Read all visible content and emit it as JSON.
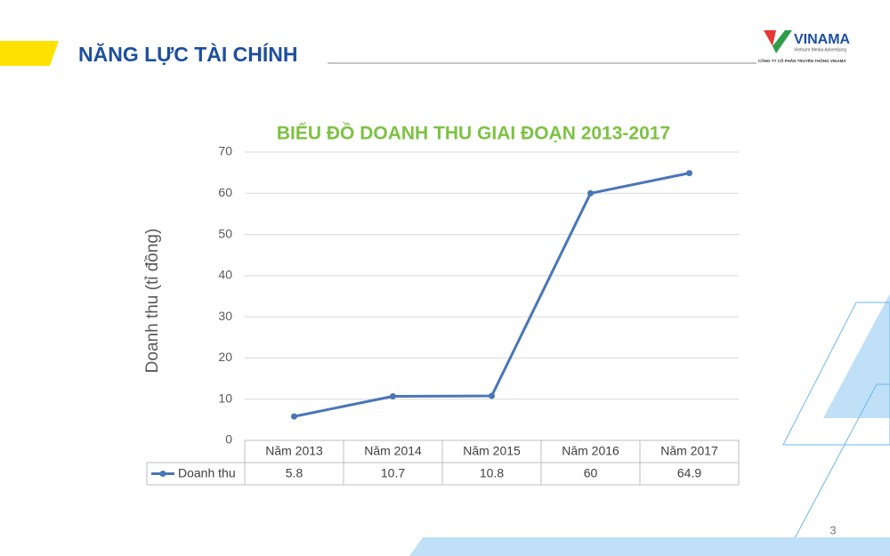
{
  "header": {
    "title": "NĂNG LỰC TÀI CHÍNH"
  },
  "logo": {
    "name": "VINAMA",
    "tagline": "Vietnam Media Advertising",
    "company": "CÔNG TY CỔ PHẦN TRUYỀN THÔNG VINAMA"
  },
  "page_number": "3",
  "chart_data": {
    "type": "line",
    "title": "BIỂU ĐỒ DOANH THU GIAI ĐOẠN 2013-2017",
    "y_label": "Doanh thu (tỉ đồng)",
    "categories": [
      "Năm 2013",
      "Năm 2014",
      "Năm 2015",
      "Năm 2016",
      "Năm 2017"
    ],
    "series": [
      {
        "name": "Doanh thu",
        "color": "#4a76b8",
        "values": [
          5.8,
          10.7,
          10.8,
          60,
          64.9
        ]
      }
    ],
    "ylim": [
      0,
      70
    ],
    "yticks": [
      0,
      10,
      20,
      30,
      40,
      50,
      60,
      70
    ],
    "grid": true,
    "data_table": true
  }
}
